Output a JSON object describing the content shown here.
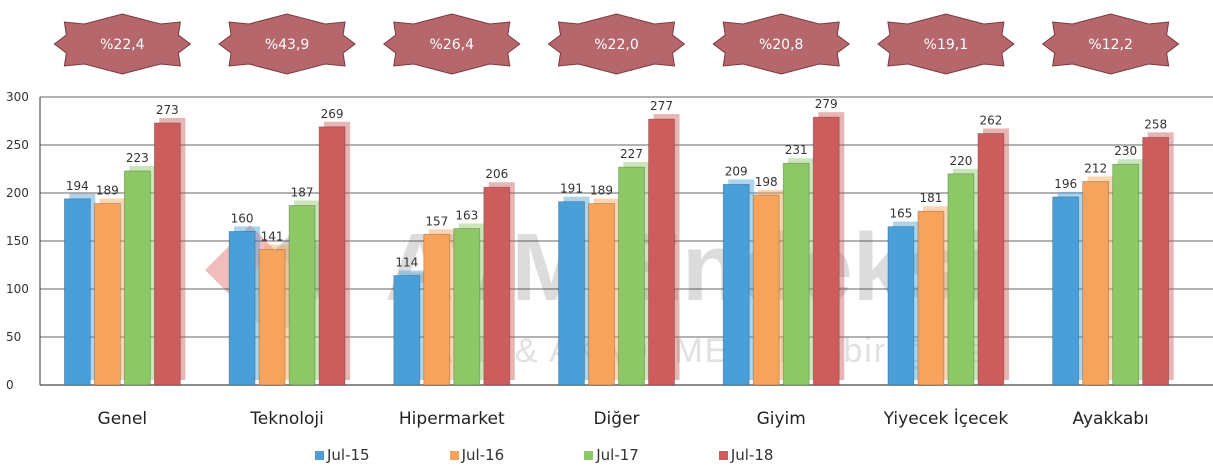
{
  "chart_data": {
    "type": "bar",
    "categories": [
      "Genel",
      "Teknoloji",
      "Hipermarket",
      "Diğer",
      "Giyim",
      "Yiyecek İçecek",
      "Ayakkabı"
    ],
    "series": [
      {
        "name": "Jul-15",
        "color": "#4a9fd8",
        "values": [
          194,
          160,
          114,
          191,
          209,
          165,
          196
        ]
      },
      {
        "name": "Jul-16",
        "color": "#f7a35c",
        "values": [
          189,
          141,
          157,
          189,
          198,
          181,
          212
        ]
      },
      {
        "name": "Jul-17",
        "color": "#8cc866",
        "values": [
          223,
          187,
          163,
          227,
          231,
          220,
          230
        ]
      },
      {
        "name": "Jul-18",
        "color": "#cd5c5c",
        "values": [
          273,
          269,
          206,
          277,
          279,
          262,
          258
        ]
      }
    ],
    "change_badges": [
      "%22,4",
      "%43,9",
      "%26,4",
      "%22,0",
      "%20,8",
      "%19,1",
      "%12,2"
    ],
    "y_ticks": [
      0,
      50,
      100,
      150,
      200,
      250,
      300
    ],
    "ylim": [
      0,
      300
    ],
    "grid": true,
    "legend_position": "bottom",
    "title": "",
    "xlabel": "",
    "ylabel": ""
  },
  "watermark": {
    "title": "AVM Endeksi",
    "subtitle": "AYD & AKADEMETRE işbirliği ile"
  },
  "colors": {
    "badge_fill": "#b5676b",
    "badge_stroke": "#7a3a40",
    "gridline": "#333333"
  }
}
